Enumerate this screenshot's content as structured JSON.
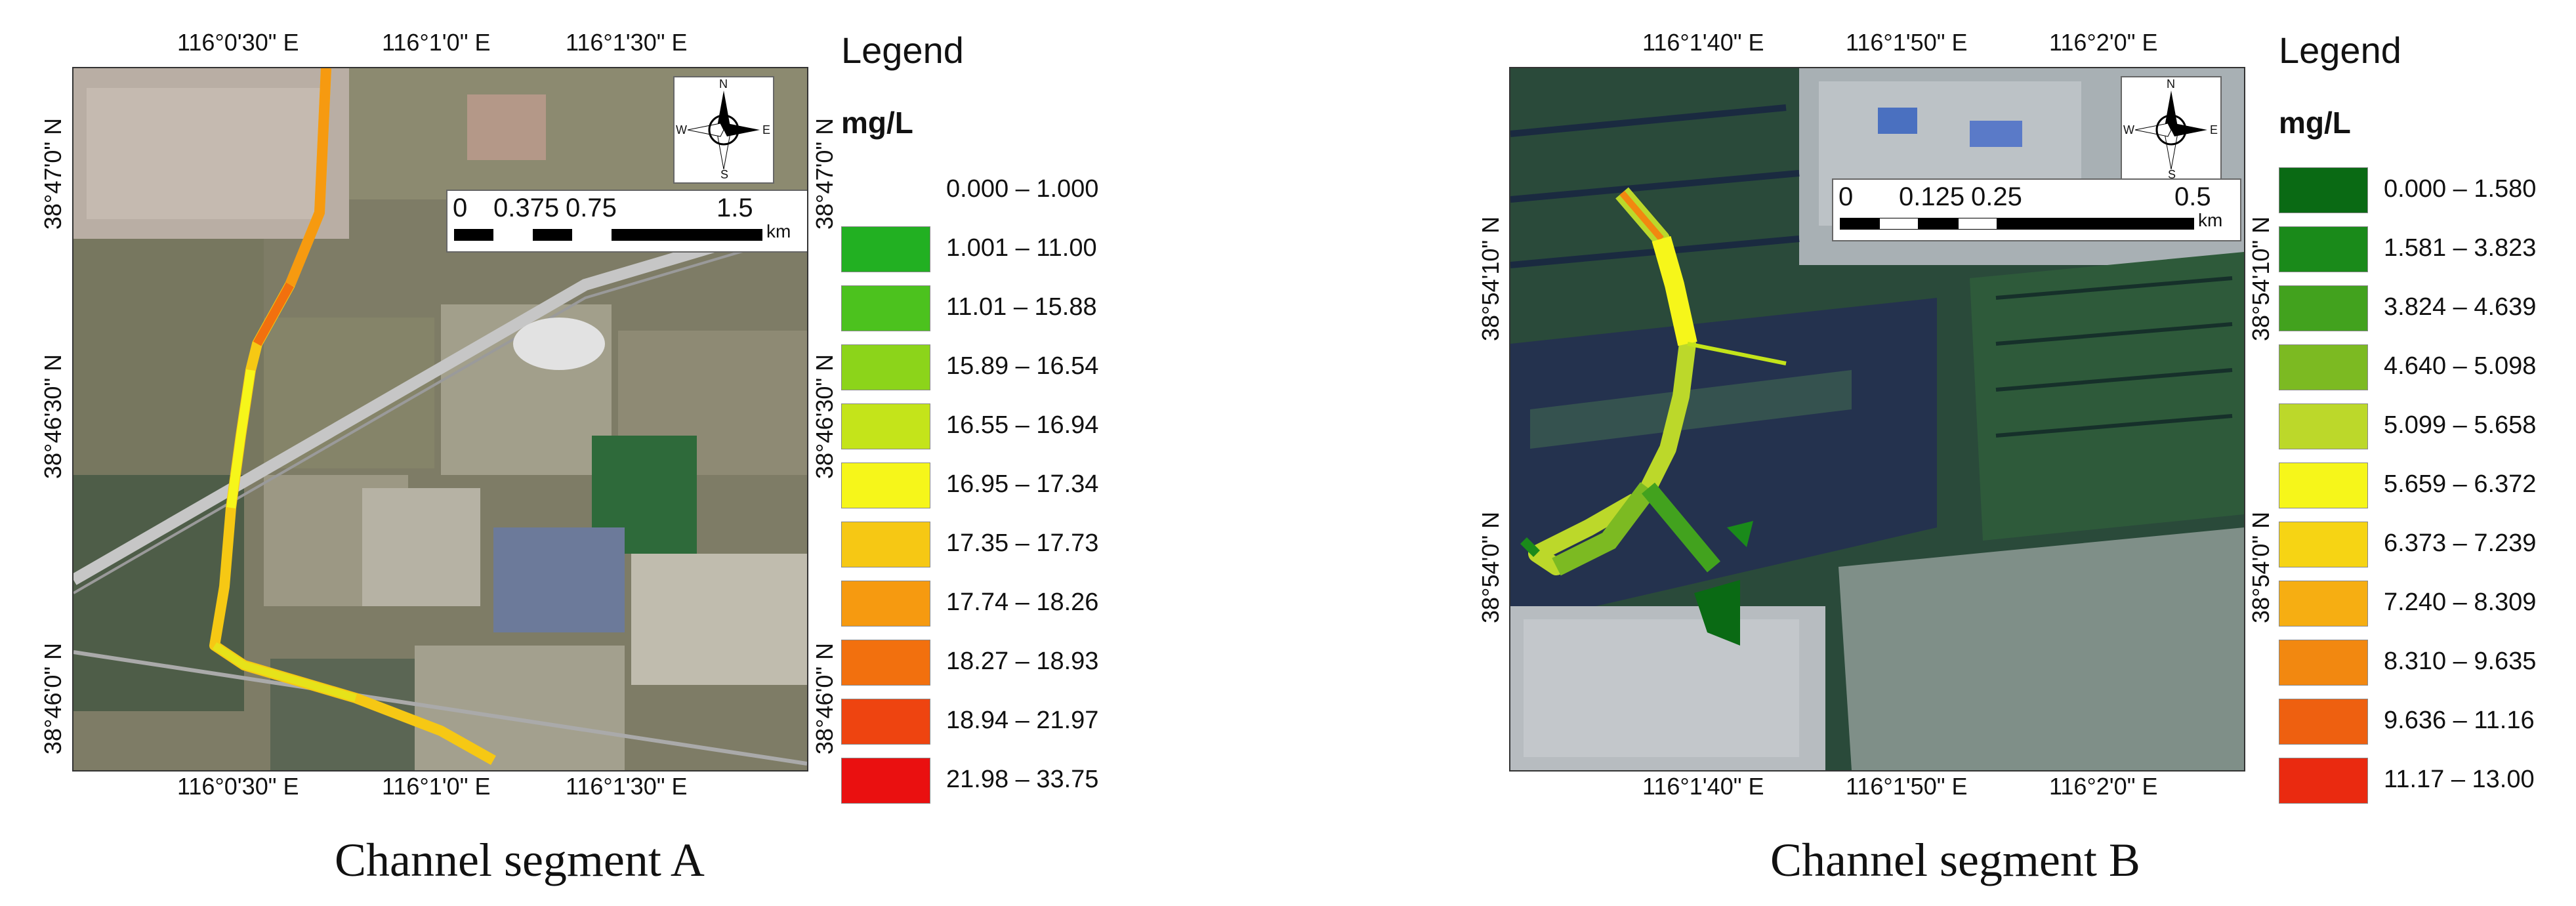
{
  "panels": [
    {
      "caption": "Channel segment A",
      "top_lon_labels": [
        "116°0'30\" E",
        "116°1'0\" E",
        "116°1'30\" E"
      ],
      "bottom_lon_labels": [
        "116°0'30\" E",
        "116°1'0\" E",
        "116°1'30\" E"
      ],
      "left_lat_labels": [
        "38°47'0\" N",
        "38°46'30\" N",
        "38°46'0\" N"
      ],
      "right_lat_labels": [
        "38°47'0\" N",
        "38°46'30\" N",
        "38°46'0\" N"
      ],
      "scale_ticks": [
        "0",
        "0.375",
        "0.75",
        "1.5"
      ],
      "scale_unit": "km",
      "compass": {
        "n": "N",
        "s": "S",
        "e": "E",
        "w": "W"
      },
      "legend": {
        "title": "Legend",
        "unit": "mg/L",
        "classes": [
          {
            "label": "0.000 – 1.000",
            "color": ""
          },
          {
            "label": "1.001 – 11.00",
            "color": "#22b022"
          },
          {
            "label": "11.01 – 15.88",
            "color": "#4cc21e"
          },
          {
            "label": "15.89 – 16.54",
            "color": "#8cd41a"
          },
          {
            "label": "16.55 – 16.94",
            "color": "#c4e41a"
          },
          {
            "label": "16.95 – 17.34",
            "color": "#f6f61a"
          },
          {
            "label": "17.35 – 17.73",
            "color": "#f6c814"
          },
          {
            "label": "17.74 – 18.26",
            "color": "#f69a10"
          },
          {
            "label": "18.27 – 18.93",
            "color": "#f2700e"
          },
          {
            "label": "18.94 – 21.97",
            "color": "#ee4410"
          },
          {
            "label": "21.98 – 33.75",
            "color": "#ea1010"
          }
        ]
      }
    },
    {
      "caption": "Channel segment B",
      "top_lon_labels": [
        "116°1'40\" E",
        "116°1'50\" E",
        "116°2'0\" E"
      ],
      "bottom_lon_labels": [
        "116°1'40\" E",
        "116°1'50\" E",
        "116°2'0\" E"
      ],
      "left_lat_labels": [
        "38°54'10\" N",
        "38°54'0\" N"
      ],
      "right_lat_labels": [
        "38°54'10\" N",
        "38°54'0\" N"
      ],
      "scale_ticks": [
        "0",
        "0.125",
        "0.25",
        "0.5"
      ],
      "scale_unit": "km",
      "compass": {
        "n": "N",
        "s": "S",
        "e": "E",
        "w": "W"
      },
      "legend": {
        "title": "Legend",
        "unit": "mg/L",
        "classes": [
          {
            "label": "0.000 – 1.580",
            "color": "#0a6a14"
          },
          {
            "label": "1.581 – 3.823",
            "color": "#1a8a1a"
          },
          {
            "label": "3.824 – 4.639",
            "color": "#42a21e"
          },
          {
            "label": "4.640 – 5.098",
            "color": "#7cba22"
          },
          {
            "label": "5.099 – 5.658",
            "color": "#bcd82a"
          },
          {
            "label": "5.659 – 6.372",
            "color": "#f6f61a"
          },
          {
            "label": "6.373 – 7.239",
            "color": "#f6d414"
          },
          {
            "label": "7.240 – 8.309",
            "color": "#f6ae12"
          },
          {
            "label": "8.310 – 9.635",
            "color": "#f28810"
          },
          {
            "label": "9.636 – 11.16",
            "color": "#ee6010"
          },
          {
            "label": "11.17 – 13.00",
            "color": "#ea2a10"
          }
        ]
      }
    }
  ]
}
